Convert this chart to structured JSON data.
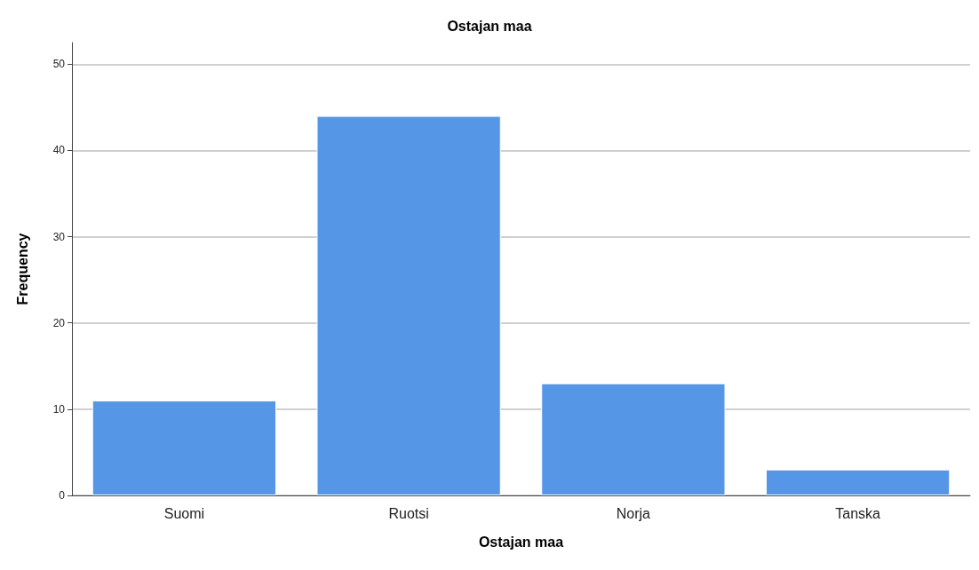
{
  "chart_data": {
    "type": "bar",
    "title": "Ostajan maa",
    "xlabel": "Ostajan maa",
    "ylabel": "Frequency",
    "categories": [
      "Suomi",
      "Ruotsi",
      "Norja",
      "Tanska"
    ],
    "values": [
      11,
      44,
      13,
      3
    ],
    "color": "#5596e6",
    "ylim": [
      0,
      52.5
    ],
    "yticks": [
      0,
      10,
      20,
      30,
      40,
      50
    ],
    "grid": "y"
  }
}
